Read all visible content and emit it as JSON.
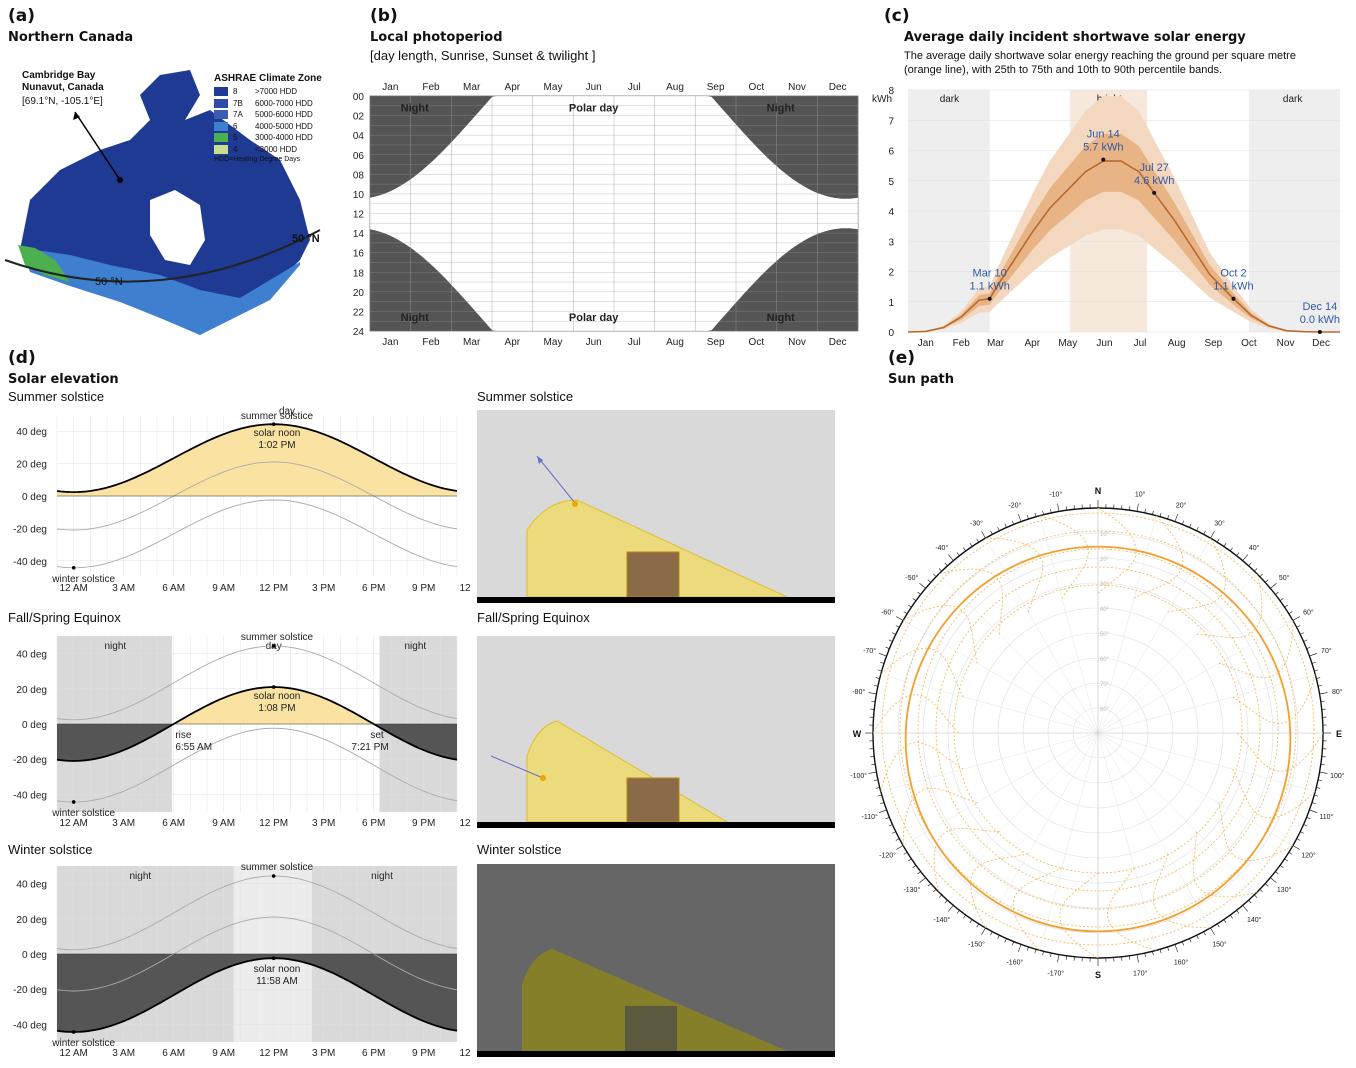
{
  "panel_a": {
    "label": "(a)",
    "title": "Northern Canada",
    "location_name": "Cambridge Bay\nNunavut, Canada",
    "coords": "[69.1°N, -105.1°E]",
    "legend_title": "ASHRAE Climate Zone",
    "legend": [
      {
        "zone": "8",
        "range": ">7000 HDD",
        "color": "#1f3a93"
      },
      {
        "zone": "7B",
        "range": "6000-7000 HDD",
        "color": "#2f4aa8"
      },
      {
        "zone": "7A",
        "range": "5000-6000 HDD",
        "color": "#3e5bb8"
      },
      {
        "zone": "6",
        "range": "4000-5000 HDD",
        "color": "#3f7fd0"
      },
      {
        "zone": "5",
        "range": "3000-4000 HDD",
        "color": "#4caf50"
      },
      {
        "zone": "4",
        "range": "<3000 HDD",
        "color": "#c8e08a"
      }
    ],
    "legend_note": "HDD=Heating Degree Days",
    "lat_label_1": "50 °N",
    "lat_label_2": "50 °N"
  },
  "panel_b": {
    "label": "(b)",
    "title": "Local photoperiod",
    "subtitle": "[day length, Sunrise, Sunset & twilight ]",
    "months": [
      "Jan",
      "Feb",
      "Mar",
      "Apr",
      "May",
      "Jun",
      "Jul",
      "Aug",
      "Sep",
      "Oct",
      "Nov",
      "Dec"
    ],
    "hours": [
      "00",
      "02",
      "04",
      "06",
      "08",
      "10",
      "12",
      "14",
      "16",
      "18",
      "20",
      "22",
      "24"
    ],
    "labels": {
      "night": "Night",
      "polar_day": "Polar day"
    }
  },
  "panel_c": {
    "label": "(c)",
    "title": "Average daily incident shortwave solar energy",
    "desc_1": "The average daily shortwave solar energy reaching the ground per square metre",
    "desc_2": "(orange line), with 25th to 75th and 10th to 90th percentile bands.",
    "chart_data": {
      "type": "line",
      "ylabel": "kWh",
      "ylim": [
        0,
        8
      ],
      "yticks": [
        "0",
        "1",
        "2",
        "3",
        "4",
        "5",
        "6",
        "7",
        "8"
      ],
      "months": [
        "Jan",
        "Feb",
        "Mar",
        "Apr",
        "May",
        "Jun",
        "Jul",
        "Aug",
        "Sep",
        "Oct",
        "Nov",
        "Dec"
      ],
      "bands": {
        "dark_1": "dark",
        "bright": "bright",
        "dark_2": "dark"
      },
      "x": [
        0,
        15,
        30,
        45,
        60,
        69,
        75,
        90,
        105,
        120,
        135,
        150,
        165,
        180,
        195,
        208,
        225,
        240,
        255,
        275,
        290,
        305,
        320,
        335,
        348,
        365
      ],
      "mean": [
        0.0,
        0.02,
        0.15,
        0.5,
        1.05,
        1.1,
        1.5,
        2.4,
        3.3,
        4.1,
        4.7,
        5.3,
        5.65,
        5.65,
        5.3,
        4.6,
        3.7,
        2.8,
        1.9,
        1.1,
        0.55,
        0.2,
        0.04,
        0.01,
        0.0,
        0.0
      ],
      "annotations": [
        {
          "date": "Mar 10",
          "value": "1.1 kWh",
          "x": 69,
          "y": 1.1
        },
        {
          "date": "Jun 14",
          "value": "5.7 kWh",
          "x": 165,
          "y": 5.7
        },
        {
          "date": "Jul 27",
          "value": "4.6 kWh",
          "x": 208,
          "y": 4.6
        },
        {
          "date": "Oct 2",
          "value": "1.1 kWh",
          "x": 275,
          "y": 1.1
        },
        {
          "date": "Dec 14",
          "value": "0.0 kWh",
          "x": 348,
          "y": 0.0
        }
      ],
      "colors": {
        "line": "#b86a2e",
        "band_inner": "#e8b486",
        "band_outer": "#f3d8bf"
      }
    }
  },
  "panel_d": {
    "label": "(d)",
    "title": "Solar elevation",
    "charts": [
      {
        "heading": "Summer solstice",
        "day_label": "day",
        "noon_label": "solar noon",
        "noon_time": "1:02 PM",
        "summer_label": "summer solstice",
        "winter_label": "winter solstice"
      },
      {
        "heading": "Fall/Spring Equinox",
        "night_label": "night",
        "day_label": "day",
        "noon_label": "solar noon",
        "noon_time": "1:08 PM",
        "rise_label": "rise",
        "rise_time": "6:55 AM",
        "set_label": "set",
        "set_time": "7:21 PM",
        "summer_label": "summer solstice",
        "winter_label": "winter solstice"
      },
      {
        "heading": "Winter solstice",
        "night_label": "night",
        "noon_label": "solar noon",
        "noon_time": "11:58 AM",
        "summer_label": "summer solstice",
        "winter_label": "winter solstice"
      }
    ],
    "yticks": [
      "40 deg",
      "20 deg",
      "0 deg",
      "-20 deg",
      "-40 deg"
    ],
    "xticks": [
      "12 AM",
      "3 AM",
      "6 AM",
      "9 AM",
      "12 PM",
      "3 PM",
      "6 PM",
      "9 PM",
      "12 AM"
    ],
    "chart_data": {
      "type": "line",
      "ylim": [
        -50,
        50
      ],
      "summer_solstice_elev": {
        "max": 44.3,
        "min": 2.4
      },
      "equinox_elev": {
        "max": 21.0,
        "min": -21.0
      },
      "winter_solstice_elev": {
        "max": -2.4,
        "min": -44.3
      }
    }
  },
  "panel_e": {
    "label": "(e)",
    "title": "Sun path",
    "compass": {
      "n": "N",
      "s": "S",
      "e": "E",
      "w": "W"
    },
    "elev_labels": [
      "10°",
      "20°",
      "30°",
      "40°",
      "50°",
      "60°",
      "70°",
      "80°"
    ],
    "az_labels": [
      "10°",
      "20°",
      "30°",
      "40°",
      "50°",
      "60°",
      "70°",
      "80°",
      "100°",
      "110°",
      "120°",
      "130°",
      "140°",
      "150°",
      "160°",
      "170°",
      "-170°",
      "-160°",
      "-150°",
      "-140°",
      "-130°",
      "-120°",
      "-110°",
      "-100°",
      "-80°",
      "-70°",
      "-60°",
      "-50°",
      "-40°",
      "-30°",
      "-20°",
      "-10°"
    ]
  }
}
